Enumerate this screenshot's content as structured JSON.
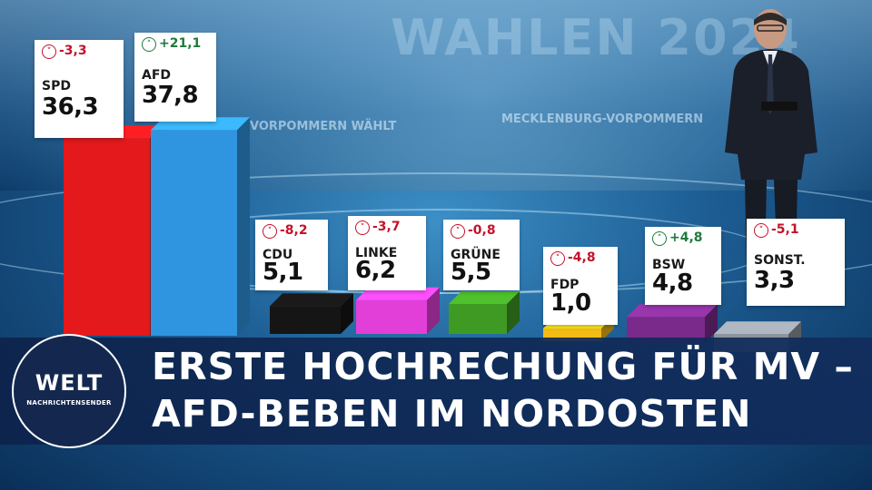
{
  "chart_data": {
    "type": "bar",
    "categories": [
      "SPD",
      "AFD",
      "CDU",
      "LINKE",
      "GRÜNE",
      "FDP",
      "BSW",
      "SONST."
    ],
    "values": [
      36.3,
      37.8,
      5.1,
      6.2,
      5.5,
      1.0,
      4.8,
      3.3
    ],
    "value_labels": [
      "36,3",
      "37,8",
      "5,1",
      "6,2",
      "5,5",
      "1,0",
      "4,8",
      "3,3"
    ],
    "changes": [
      "-3,3",
      "+21,1",
      "-8,2",
      "-3,7",
      "-0,8",
      "-4,8",
      "+4,8",
      "-5,1"
    ],
    "change_direction": [
      "down",
      "up",
      "down",
      "down",
      "down",
      "down",
      "up",
      "down"
    ],
    "colors": [
      "#e3191b",
      "#2f95e0",
      "#151515",
      "#e23fd8",
      "#3f9a24",
      "#f2bb15",
      "#7a2a8a",
      "#8d949c"
    ],
    "up_color": "#1f7a3d",
    "down_color": "#c4122a"
  },
  "background": {
    "watermark": "WAHLEN 2024",
    "wall_label_left": "VORPOMMERN WÄHLT",
    "wall_label_right": "MECKLENBURG-VORPOMMERN"
  },
  "logo": {
    "brand": "WELT",
    "subtitle": "NACHRICHTENSENDER"
  },
  "headline": {
    "line1": "ERSTE HOCHRECHUNG FÜR MV –",
    "line2": "AFD-BEBEN IM NORDOSTEN"
  }
}
